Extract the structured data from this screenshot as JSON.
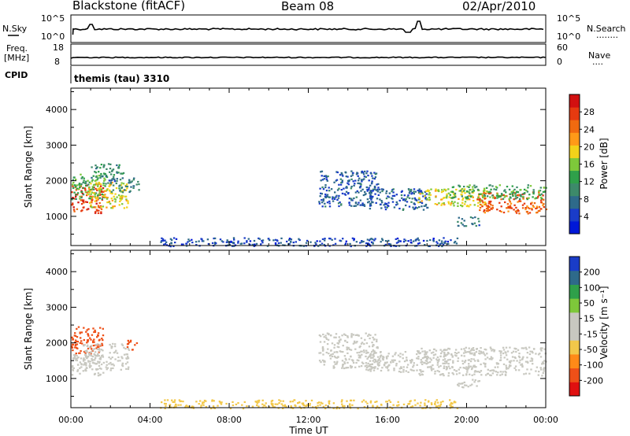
{
  "header": {
    "station": "Blackstone (fitACF)",
    "beam": "Beam 08",
    "date": "02/Apr/2010"
  },
  "panels": {
    "sky_label": "N.Sky",
    "search_label": "N.Search",
    "search_dots": "........",
    "sky_ticks": [
      "10^5",
      "10^0"
    ],
    "search_ticks": [
      "10^5",
      "10^0"
    ],
    "freq_label": "Freq.",
    "freq_unit": "[MHz]",
    "freq_ticks": [
      "18",
      "8"
    ],
    "nave_label": "Nave",
    "nave_dots": "....",
    "nave_ticks": [
      "60",
      "0"
    ],
    "cpid_label": "CPID",
    "cpid_text": "themis (tau) 3310"
  },
  "colors": {
    "power": [
      "#0018d8",
      "#1a3cc8",
      "#2e6a8a",
      "#3d8a6a",
      "#2fa04a",
      "#7ec83a",
      "#f2d21a",
      "#ff9a18",
      "#f06a10",
      "#e63a10",
      "#d21010"
    ],
    "velocity": [
      "#e01010",
      "#ee5018",
      "#ff8a18",
      "#f2c84a",
      "#c8c8c0",
      "#c8c8c0",
      "#7ec83a",
      "#2fa04a",
      "#2e6a8a",
      "#1a3cc8"
    ]
  },
  "chart_data": [
    {
      "type": "heatmap",
      "name": "power",
      "xlabel": "",
      "ylabel": "Slant Range [km]",
      "y_ticks": [
        1000,
        2000,
        3000,
        4000
      ],
      "ylim": [
        180,
        4600
      ],
      "xlim_hours": [
        0,
        24
      ],
      "colorbar": {
        "label": "Power [dB]",
        "ticks": [
          "4",
          "8",
          "12",
          "16",
          "20",
          "24",
          "28"
        ],
        "range": [
          0,
          30
        ]
      },
      "regions": [
        {
          "t0": 0.0,
          "t1": 1.6,
          "r0": 1100,
          "r1": 1900,
          "level": 26
        },
        {
          "t0": 0.0,
          "t1": 1.8,
          "r0": 1500,
          "r1": 2200,
          "level": 13
        },
        {
          "t0": 0.8,
          "t1": 2.9,
          "r0": 1250,
          "r1": 2000,
          "level": 18
        },
        {
          "t0": 1.8,
          "t1": 3.4,
          "r0": 1700,
          "r1": 2100,
          "level": 8
        },
        {
          "t0": 1.0,
          "t1": 2.7,
          "r0": 2100,
          "r1": 2500,
          "level": 10
        },
        {
          "t0": 12.5,
          "t1": 15.5,
          "r0": 1300,
          "r1": 2300,
          "level": 6
        },
        {
          "t0": 14.8,
          "t1": 18.0,
          "r0": 1200,
          "r1": 1800,
          "level": 6
        },
        {
          "t0": 17.5,
          "t1": 21.0,
          "r0": 1300,
          "r1": 1800,
          "level": 17
        },
        {
          "t0": 20.5,
          "t1": 24.0,
          "r0": 1100,
          "r1": 1700,
          "level": 24
        },
        {
          "t0": 19.0,
          "t1": 24.0,
          "r0": 1500,
          "r1": 1900,
          "level": 12
        },
        {
          "t0": 19.5,
          "t1": 20.6,
          "r0": 750,
          "r1": 1000,
          "level": 8
        },
        {
          "t0": 4.5,
          "t1": 19.5,
          "r0": 180,
          "r1": 420,
          "level": 5
        }
      ]
    },
    {
      "type": "heatmap",
      "name": "velocity",
      "xlabel": "Time UT",
      "ylabel": "Slant Range [km]",
      "y_ticks": [
        1000,
        2000,
        3000,
        4000
      ],
      "ylim": [
        180,
        4600
      ],
      "x_ticks": [
        "00:00",
        "04:00",
        "08:00",
        "12:00",
        "16:00",
        "20:00",
        "00:00"
      ],
      "xlim_hours": [
        0,
        24
      ],
      "colorbar": {
        "label": "Velocity [m s⁻¹]",
        "ticks": [
          "-200",
          "-100",
          "-50",
          "-15",
          "15",
          "50",
          "100",
          "200"
        ],
        "range": [
          -250,
          250
        ]
      },
      "regions": [
        {
          "t0": 0.0,
          "t1": 1.6,
          "r0": 1100,
          "r1": 1700,
          "level": 0
        },
        {
          "t0": 0.0,
          "t1": 1.6,
          "r0": 1700,
          "r1": 2500,
          "level": -170
        },
        {
          "t0": 0.6,
          "t1": 2.9,
          "r0": 1250,
          "r1": 2000,
          "level": 0
        },
        {
          "t0": 2.8,
          "t1": 3.3,
          "r0": 1800,
          "r1": 2100,
          "level": -170
        },
        {
          "t0": 12.5,
          "t1": 15.5,
          "r0": 1300,
          "r1": 2300,
          "level": 0
        },
        {
          "t0": 14.8,
          "t1": 18.0,
          "r0": 1200,
          "r1": 1800,
          "level": 0
        },
        {
          "t0": 17.5,
          "t1": 24.0,
          "r0": 1100,
          "r1": 1900,
          "level": 0
        },
        {
          "t0": 19.5,
          "t1": 20.6,
          "r0": 750,
          "r1": 1000,
          "level": 0
        },
        {
          "t0": 4.5,
          "t1": 19.5,
          "r0": 180,
          "r1": 420,
          "level": -60
        }
      ]
    }
  ]
}
